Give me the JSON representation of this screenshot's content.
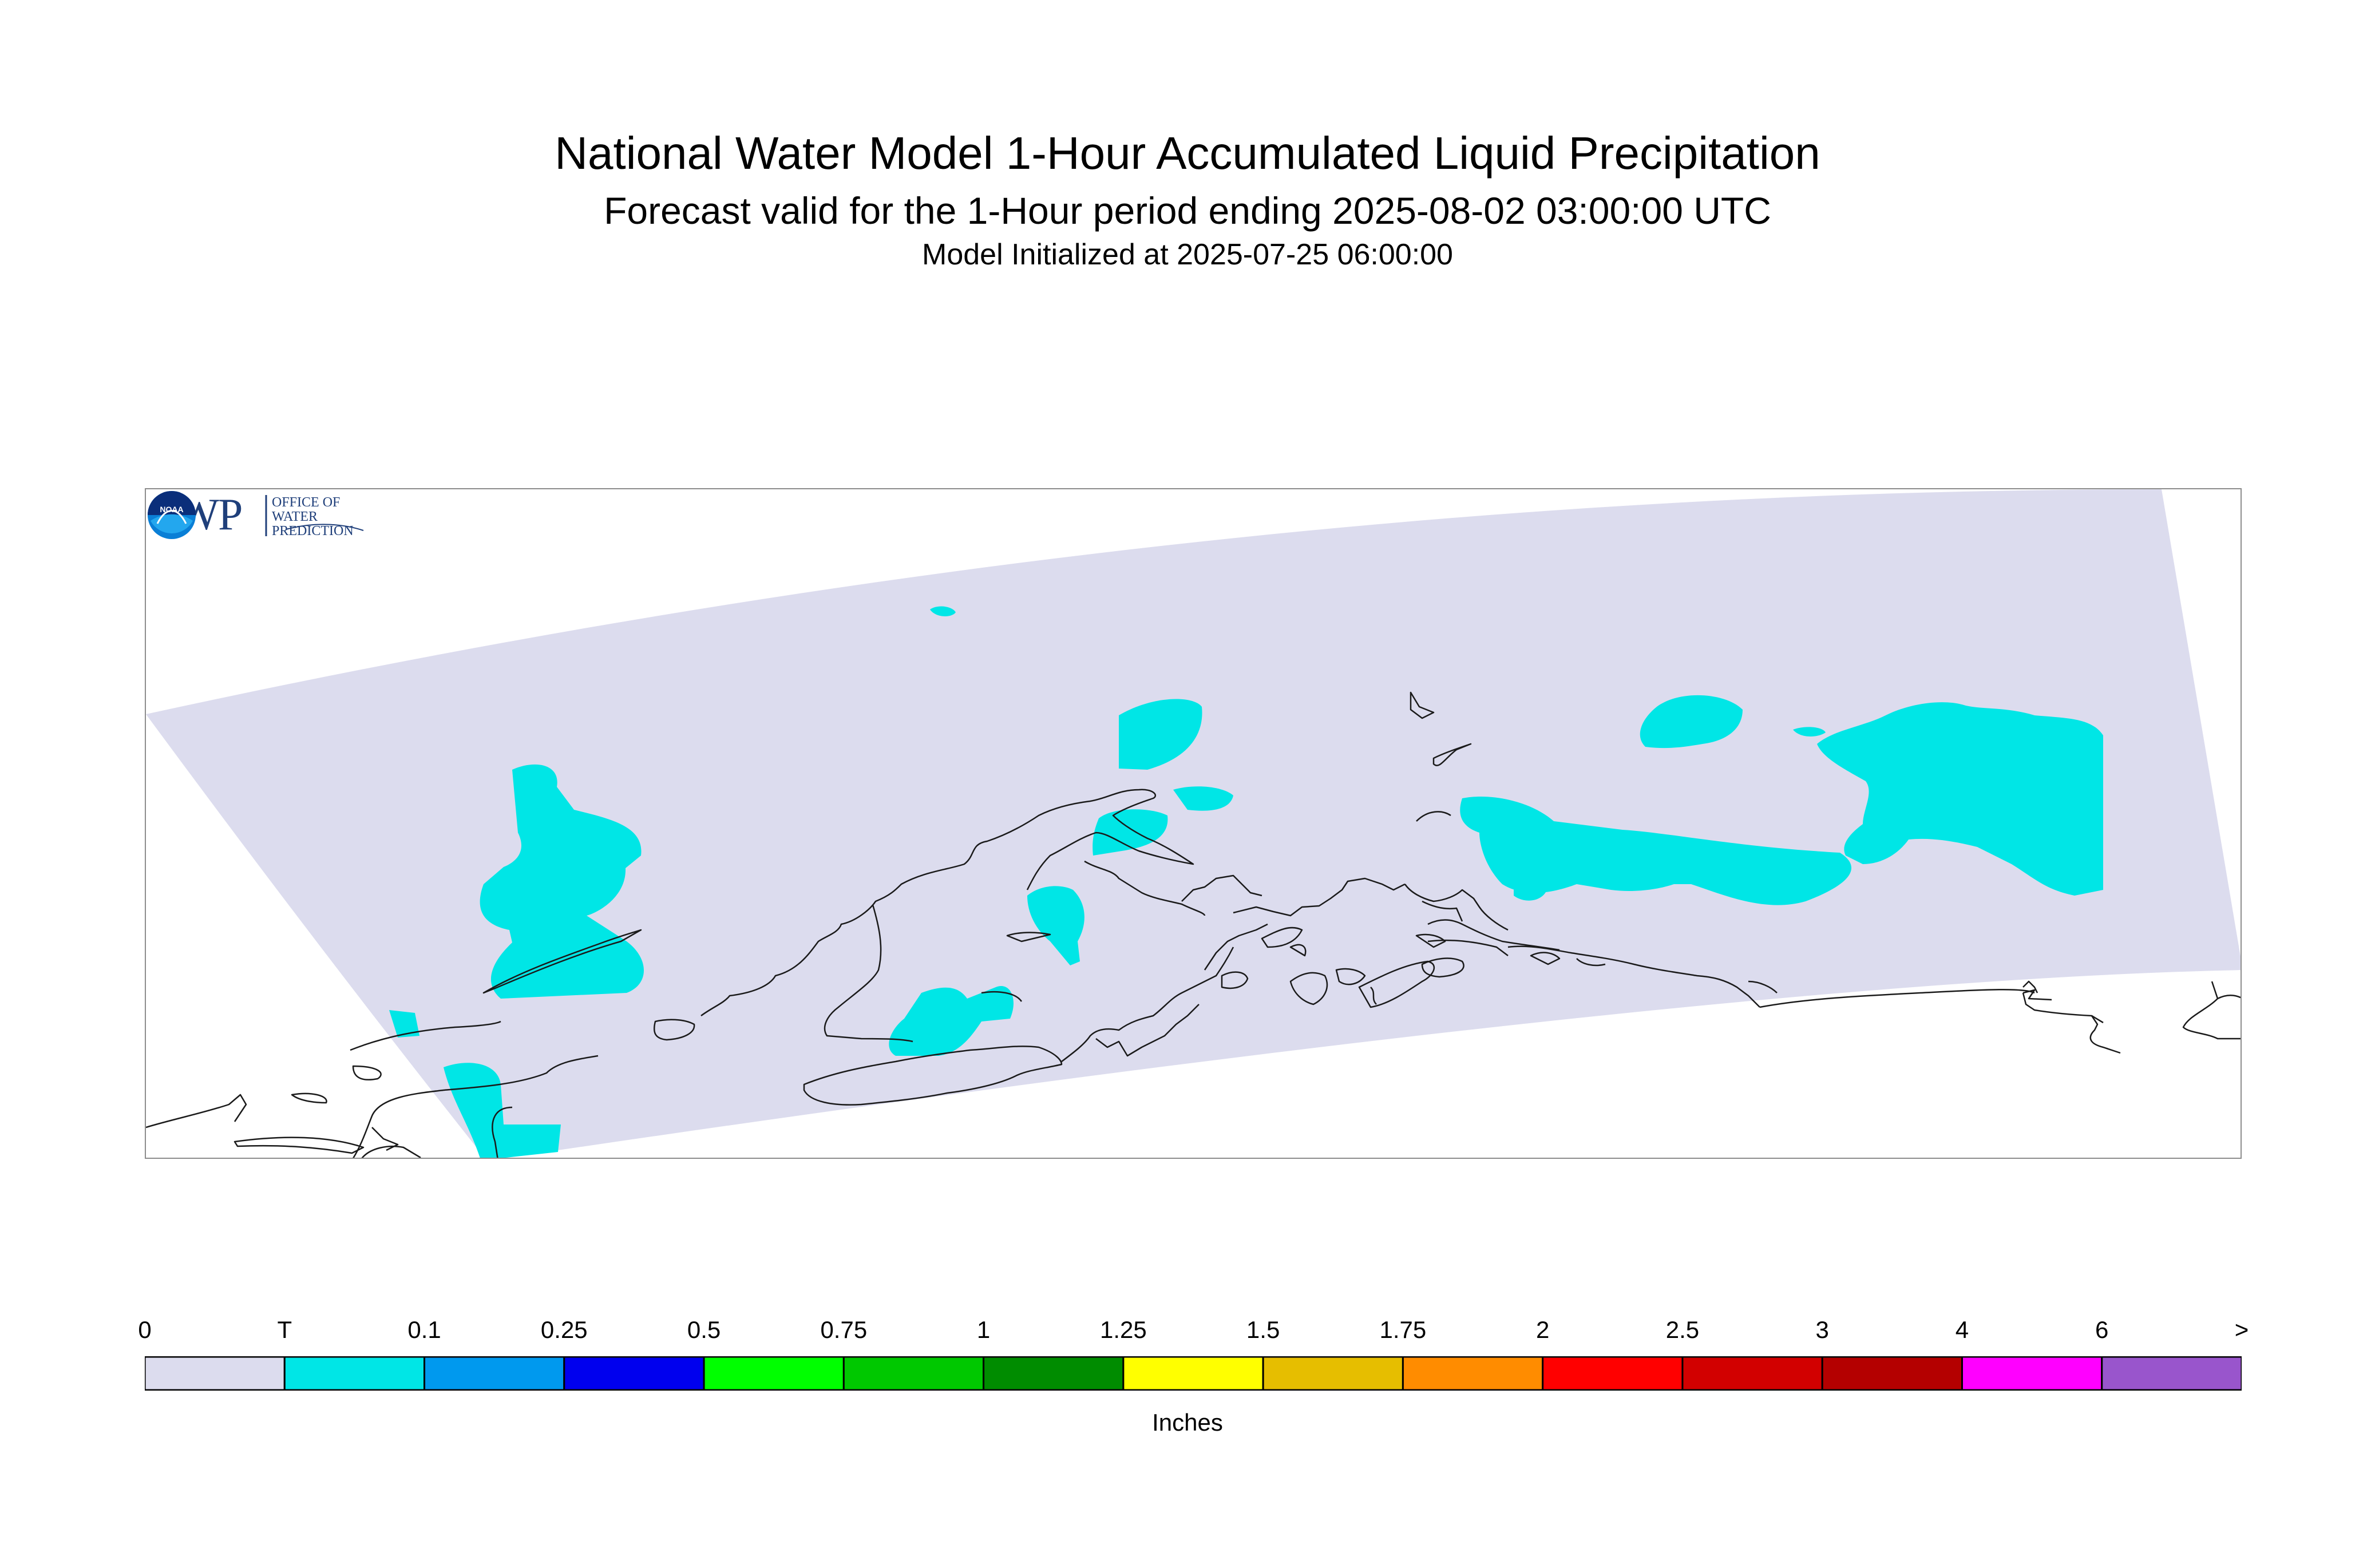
{
  "title": "National Water Model 1-Hour Accumulated Liquid Precipitation",
  "subtitle": "Forecast valid for the 1-Hour period ending 2025-08-02 03:00:00 UTC",
  "initialized": "Model Initialized at 2025-07-25 06:00:00",
  "legend": {
    "units": "Inches",
    "labels": [
      "0",
      "T",
      "0.1",
      "0.25",
      "0.5",
      "0.75",
      "1",
      "1.25",
      "1.5",
      "1.75",
      "2",
      "2.5",
      "3",
      "4",
      "6",
      ">"
    ],
    "colors": [
      "#dcdcee",
      "#00e6e6",
      "#0099ee",
      "#0000ee",
      "#00ff00",
      "#00c800",
      "#008c00",
      "#ffff00",
      "#e6be00",
      "#ff8c00",
      "#ff0000",
      "#d20000",
      "#b40000",
      "#ff00ff",
      "#9955cc"
    ]
  },
  "map": {
    "domain_color": "#dcdcee",
    "precip_color": "#00e6e6",
    "coast_color": "#1a1a1a"
  },
  "logos": {
    "owp_mark": "OWP",
    "owp_text": [
      "OFFICE OF",
      "WATER",
      "PREDICTION"
    ],
    "noaa_text": "NOAA"
  }
}
